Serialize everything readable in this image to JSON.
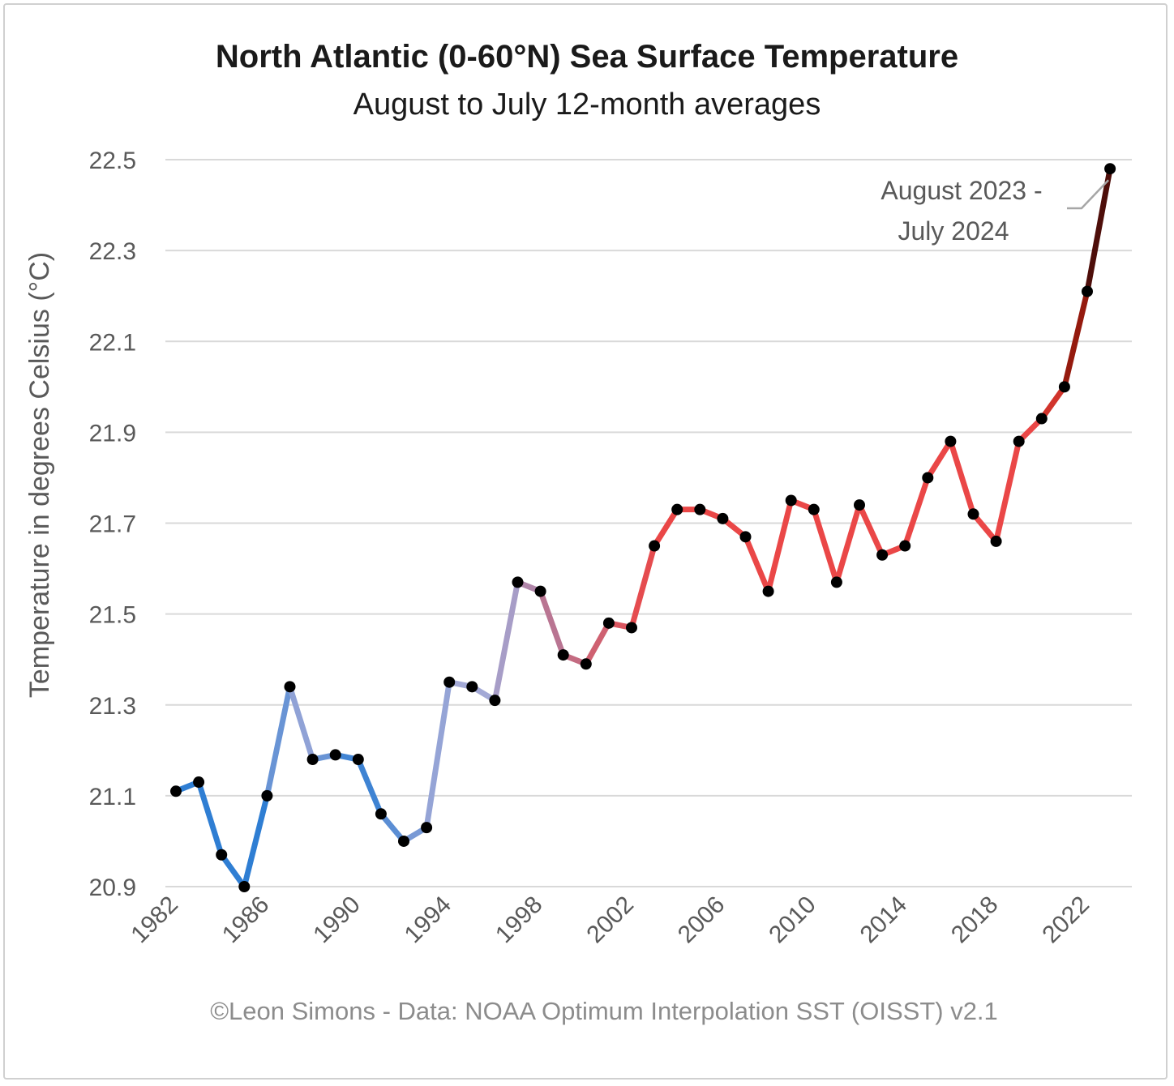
{
  "chart_data": {
    "type": "line",
    "title": "North Atlantic (0-60°N) Sea Surface Temperature",
    "subtitle": "August to July 12-month averages",
    "ylabel": "Temperature in degrees Celsius (°C)",
    "xlabel": "",
    "ylim": [
      20.9,
      22.5
    ],
    "yticks": [
      "20.9",
      "21.1",
      "21.3",
      "21.5",
      "21.7",
      "21.9",
      "22.1",
      "22.3",
      "22.5"
    ],
    "xticks": [
      "1982",
      "1986",
      "1990",
      "1994",
      "1998",
      "2002",
      "2006",
      "2010",
      "2014",
      "2018",
      "2022"
    ],
    "grid": "horizontal",
    "x": [
      1982,
      1983,
      1984,
      1985,
      1986,
      1987,
      1988,
      1989,
      1990,
      1991,
      1992,
      1993,
      1994,
      1995,
      1996,
      1997,
      1998,
      1999,
      2000,
      2001,
      2002,
      2003,
      2004,
      2005,
      2006,
      2007,
      2008,
      2009,
      2010,
      2011,
      2012,
      2013,
      2014,
      2015,
      2016,
      2017,
      2018,
      2019,
      2020,
      2021,
      2022,
      2023
    ],
    "values": [
      21.11,
      21.13,
      20.97,
      20.9,
      21.1,
      21.34,
      21.18,
      21.19,
      21.18,
      21.06,
      21.0,
      21.03,
      21.35,
      21.34,
      21.31,
      21.57,
      21.55,
      21.41,
      21.39,
      21.48,
      21.47,
      21.65,
      21.73,
      21.73,
      21.71,
      21.67,
      21.55,
      21.75,
      21.73,
      21.57,
      21.74,
      21.63,
      21.65,
      21.8,
      21.88,
      21.72,
      21.66,
      21.88,
      21.93,
      22.0,
      22.21,
      22.48
    ],
    "annotation": {
      "line1": "August 2023 -",
      "line2": "July 2024",
      "target_year": 2023
    },
    "credit": "©Leon Simons - Data: NOAA Optimum Interpolation SST (OISST) v2.1"
  },
  "colors": {
    "grid": "#d9d9d9",
    "marker": "#000000",
    "gradient_low": "#2f7ed3",
    "gradient_mid": "#a3a9d6",
    "gradient_purple": "#b47a9a",
    "gradient_red": "#ea4747",
    "gradient_deep": "#b82010",
    "gradient_dark": "#2a0808"
  }
}
